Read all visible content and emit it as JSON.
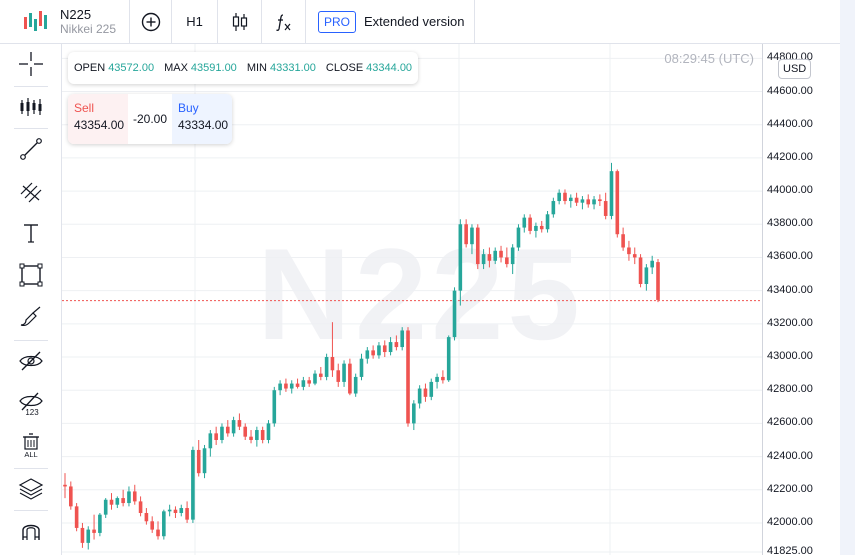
{
  "symbol": {
    "name": "N225",
    "description": "Nikkei 225"
  },
  "toolbar": {
    "interval": "H1",
    "pro_badge": "PRO",
    "extended_label": "Extended version"
  },
  "left_tools": [
    "crosshair-icon",
    "indicators-icon",
    "trend-line-icon",
    "fib-icon",
    "text-icon",
    "rectangle-icon",
    "brush-icon",
    "hide-drawings-icon",
    "hide-values-icon",
    "remove-all-icon",
    "layers-icon",
    "magnet-icon"
  ],
  "left_tools_labels": {
    "remove_all": "ALL",
    "hide_values": "123"
  },
  "watermark": "N225",
  "clock": "08:29:45 (UTC)",
  "currency": "USD",
  "ohlc": {
    "open_label": "OPEN",
    "open": "43572.00",
    "max_label": "MAX",
    "max": "43591.00",
    "min_label": "MIN",
    "min": "43331.00",
    "close_label": "CLOSE",
    "close": "43344.00"
  },
  "trade": {
    "sell_label": "Sell",
    "sell_price": "43354.00",
    "spread": "-20.00",
    "buy_label": "Buy",
    "buy_price": "43334.00"
  },
  "colors": {
    "up": "#26a69a",
    "down": "#ef5350",
    "accent": "#2962ff"
  },
  "chart_data": {
    "type": "candlestick",
    "title": "",
    "y_ticks": [
      "44800.00",
      "44600.00",
      "44400.00",
      "44200.00",
      "44000.00",
      "43800.00",
      "43600.00",
      "43400.00",
      "43200.00",
      "43000.00",
      "42800.00",
      "42600.00",
      "42400.00",
      "42200.00",
      "42000.00",
      "41825.00"
    ],
    "ylim": [
      41825,
      44820
    ],
    "current_price_line": 43340,
    "grid": true,
    "candles": [
      {
        "o": 42230,
        "h": 42300,
        "l": 42150,
        "c": 42220
      },
      {
        "o": 42220,
        "h": 42250,
        "l": 42080,
        "c": 42100
      },
      {
        "o": 42100,
        "h": 42120,
        "l": 41950,
        "c": 41970
      },
      {
        "o": 41970,
        "h": 42000,
        "l": 41850,
        "c": 41880
      },
      {
        "o": 41880,
        "h": 41980,
        "l": 41840,
        "c": 41960
      },
      {
        "o": 41960,
        "h": 42050,
        "l": 41900,
        "c": 41940
      },
      {
        "o": 41940,
        "h": 42060,
        "l": 41920,
        "c": 42050
      },
      {
        "o": 42050,
        "h": 42150,
        "l": 42030,
        "c": 42140
      },
      {
        "o": 42140,
        "h": 42180,
        "l": 42080,
        "c": 42110
      },
      {
        "o": 42110,
        "h": 42160,
        "l": 42090,
        "c": 42150
      },
      {
        "o": 42150,
        "h": 42200,
        "l": 42100,
        "c": 42120
      },
      {
        "o": 42120,
        "h": 42220,
        "l": 42100,
        "c": 42190
      },
      {
        "o": 42190,
        "h": 42230,
        "l": 42110,
        "c": 42130
      },
      {
        "o": 42130,
        "h": 42160,
        "l": 42040,
        "c": 42060
      },
      {
        "o": 42060,
        "h": 42090,
        "l": 41990,
        "c": 42010
      },
      {
        "o": 42010,
        "h": 42040,
        "l": 41940,
        "c": 41960
      },
      {
        "o": 41960,
        "h": 42010,
        "l": 41900,
        "c": 41920
      },
      {
        "o": 41920,
        "h": 42080,
        "l": 41900,
        "c": 42070
      },
      {
        "o": 42070,
        "h": 42110,
        "l": 42040,
        "c": 42080
      },
      {
        "o": 42080,
        "h": 42100,
        "l": 42030,
        "c": 42060
      },
      {
        "o": 42060,
        "h": 42110,
        "l": 42040,
        "c": 42090
      },
      {
        "o": 42090,
        "h": 42130,
        "l": 42000,
        "c": 42020
      },
      {
        "o": 42020,
        "h": 42460,
        "l": 42000,
        "c": 42440
      },
      {
        "o": 42440,
        "h": 42500,
        "l": 42280,
        "c": 42300
      },
      {
        "o": 42300,
        "h": 42470,
        "l": 42270,
        "c": 42450
      },
      {
        "o": 42450,
        "h": 42560,
        "l": 42400,
        "c": 42540
      },
      {
        "o": 42540,
        "h": 42580,
        "l": 42470,
        "c": 42500
      },
      {
        "o": 42500,
        "h": 42600,
        "l": 42480,
        "c": 42580
      },
      {
        "o": 42580,
        "h": 42620,
        "l": 42520,
        "c": 42540
      },
      {
        "o": 42540,
        "h": 42640,
        "l": 42520,
        "c": 42620
      },
      {
        "o": 42620,
        "h": 42660,
        "l": 42560,
        "c": 42580
      },
      {
        "o": 42580,
        "h": 42600,
        "l": 42500,
        "c": 42520
      },
      {
        "o": 42520,
        "h": 42560,
        "l": 42480,
        "c": 42500
      },
      {
        "o": 42500,
        "h": 42580,
        "l": 42460,
        "c": 42560
      },
      {
        "o": 42560,
        "h": 42580,
        "l": 42480,
        "c": 42500
      },
      {
        "o": 42500,
        "h": 42620,
        "l": 42480,
        "c": 42600
      },
      {
        "o": 42600,
        "h": 42820,
        "l": 42580,
        "c": 42800
      },
      {
        "o": 42800,
        "h": 42860,
        "l": 42770,
        "c": 42840
      },
      {
        "o": 42840,
        "h": 42870,
        "l": 42790,
        "c": 42810
      },
      {
        "o": 42810,
        "h": 42860,
        "l": 42780,
        "c": 42840
      },
      {
        "o": 42840,
        "h": 42870,
        "l": 42810,
        "c": 42820
      },
      {
        "o": 42820,
        "h": 42880,
        "l": 42800,
        "c": 42860
      },
      {
        "o": 42860,
        "h": 42880,
        "l": 42820,
        "c": 42840
      },
      {
        "o": 42840,
        "h": 42920,
        "l": 42830,
        "c": 42900
      },
      {
        "o": 42900,
        "h": 42940,
        "l": 42860,
        "c": 42880
      },
      {
        "o": 42880,
        "h": 43020,
        "l": 42860,
        "c": 43000
      },
      {
        "o": 43000,
        "h": 43210,
        "l": 42880,
        "c": 42920
      },
      {
        "o": 42920,
        "h": 42960,
        "l": 42820,
        "c": 42850
      },
      {
        "o": 42850,
        "h": 42980,
        "l": 42820,
        "c": 42960
      },
      {
        "o": 42960,
        "h": 42990,
        "l": 42770,
        "c": 42780
      },
      {
        "o": 42780,
        "h": 42900,
        "l": 42760,
        "c": 42880
      },
      {
        "o": 42880,
        "h": 43020,
        "l": 42860,
        "c": 42990
      },
      {
        "o": 42990,
        "h": 43060,
        "l": 42960,
        "c": 43040
      },
      {
        "o": 43040,
        "h": 43070,
        "l": 42990,
        "c": 43010
      },
      {
        "o": 43010,
        "h": 43090,
        "l": 42990,
        "c": 43070
      },
      {
        "o": 43070,
        "h": 43100,
        "l": 43000,
        "c": 43030
      },
      {
        "o": 43030,
        "h": 43120,
        "l": 43010,
        "c": 43090
      },
      {
        "o": 43090,
        "h": 43130,
        "l": 43040,
        "c": 43060
      },
      {
        "o": 43060,
        "h": 43180,
        "l": 43040,
        "c": 43160
      },
      {
        "o": 43160,
        "h": 43180,
        "l": 42580,
        "c": 42600
      },
      {
        "o": 42600,
        "h": 42740,
        "l": 42560,
        "c": 42720
      },
      {
        "o": 42720,
        "h": 42830,
        "l": 42690,
        "c": 42810
      },
      {
        "o": 42810,
        "h": 42840,
        "l": 42730,
        "c": 42760
      },
      {
        "o": 42760,
        "h": 42870,
        "l": 42740,
        "c": 42850
      },
      {
        "o": 42850,
        "h": 42900,
        "l": 42810,
        "c": 42880
      },
      {
        "o": 42880,
        "h": 42920,
        "l": 42840,
        "c": 42860
      },
      {
        "o": 42860,
        "h": 43130,
        "l": 42850,
        "c": 43120
      },
      {
        "o": 43120,
        "h": 43420,
        "l": 43100,
        "c": 43400
      },
      {
        "o": 43400,
        "h": 43830,
        "l": 43310,
        "c": 43800
      },
      {
        "o": 43800,
        "h": 43830,
        "l": 43660,
        "c": 43680
      },
      {
        "o": 43680,
        "h": 43800,
        "l": 43620,
        "c": 43780
      },
      {
        "o": 43780,
        "h": 43800,
        "l": 43530,
        "c": 43560
      },
      {
        "o": 43560,
        "h": 43650,
        "l": 43530,
        "c": 43620
      },
      {
        "o": 43620,
        "h": 43660,
        "l": 43540,
        "c": 43580
      },
      {
        "o": 43580,
        "h": 43660,
        "l": 43560,
        "c": 43640
      },
      {
        "o": 43640,
        "h": 43670,
        "l": 43570,
        "c": 43600
      },
      {
        "o": 43600,
        "h": 43660,
        "l": 43540,
        "c": 43560
      },
      {
        "o": 43560,
        "h": 43680,
        "l": 43500,
        "c": 43660
      },
      {
        "o": 43660,
        "h": 43800,
        "l": 43640,
        "c": 43780
      },
      {
        "o": 43780,
        "h": 43860,
        "l": 43750,
        "c": 43840
      },
      {
        "o": 43840,
        "h": 43860,
        "l": 43740,
        "c": 43760
      },
      {
        "o": 43760,
        "h": 43810,
        "l": 43720,
        "c": 43790
      },
      {
        "o": 43790,
        "h": 43820,
        "l": 43750,
        "c": 43770
      },
      {
        "o": 43770,
        "h": 43880,
        "l": 43750,
        "c": 43860
      },
      {
        "o": 43860,
        "h": 43960,
        "l": 43840,
        "c": 43940
      },
      {
        "o": 43940,
        "h": 44010,
        "l": 43920,
        "c": 43990
      },
      {
        "o": 43990,
        "h": 44010,
        "l": 43920,
        "c": 43940
      },
      {
        "o": 43940,
        "h": 43980,
        "l": 43900,
        "c": 43960
      },
      {
        "o": 43960,
        "h": 43990,
        "l": 43910,
        "c": 43930
      },
      {
        "o": 43930,
        "h": 43970,
        "l": 43890,
        "c": 43950
      },
      {
        "o": 43950,
        "h": 43980,
        "l": 43900,
        "c": 43920
      },
      {
        "o": 43920,
        "h": 43970,
        "l": 43890,
        "c": 43950
      },
      {
        "o": 43950,
        "h": 43980,
        "l": 43910,
        "c": 43940
      },
      {
        "o": 43940,
        "h": 43990,
        "l": 43830,
        "c": 43850
      },
      {
        "o": 43850,
        "h": 44170,
        "l": 43830,
        "c": 44120
      },
      {
        "o": 44120,
        "h": 44130,
        "l": 43720,
        "c": 43740
      },
      {
        "o": 43740,
        "h": 43780,
        "l": 43640,
        "c": 43660
      },
      {
        "o": 43660,
        "h": 43700,
        "l": 43580,
        "c": 43620
      },
      {
        "o": 43620,
        "h": 43660,
        "l": 43560,
        "c": 43600
      },
      {
        "o": 43600,
        "h": 43620,
        "l": 43420,
        "c": 43440
      },
      {
        "o": 43440,
        "h": 43560,
        "l": 43400,
        "c": 43540
      },
      {
        "o": 43540,
        "h": 43610,
        "l": 43500,
        "c": 43580
      },
      {
        "o": 43572,
        "h": 43591,
        "l": 43331,
        "c": 43344
      }
    ]
  }
}
